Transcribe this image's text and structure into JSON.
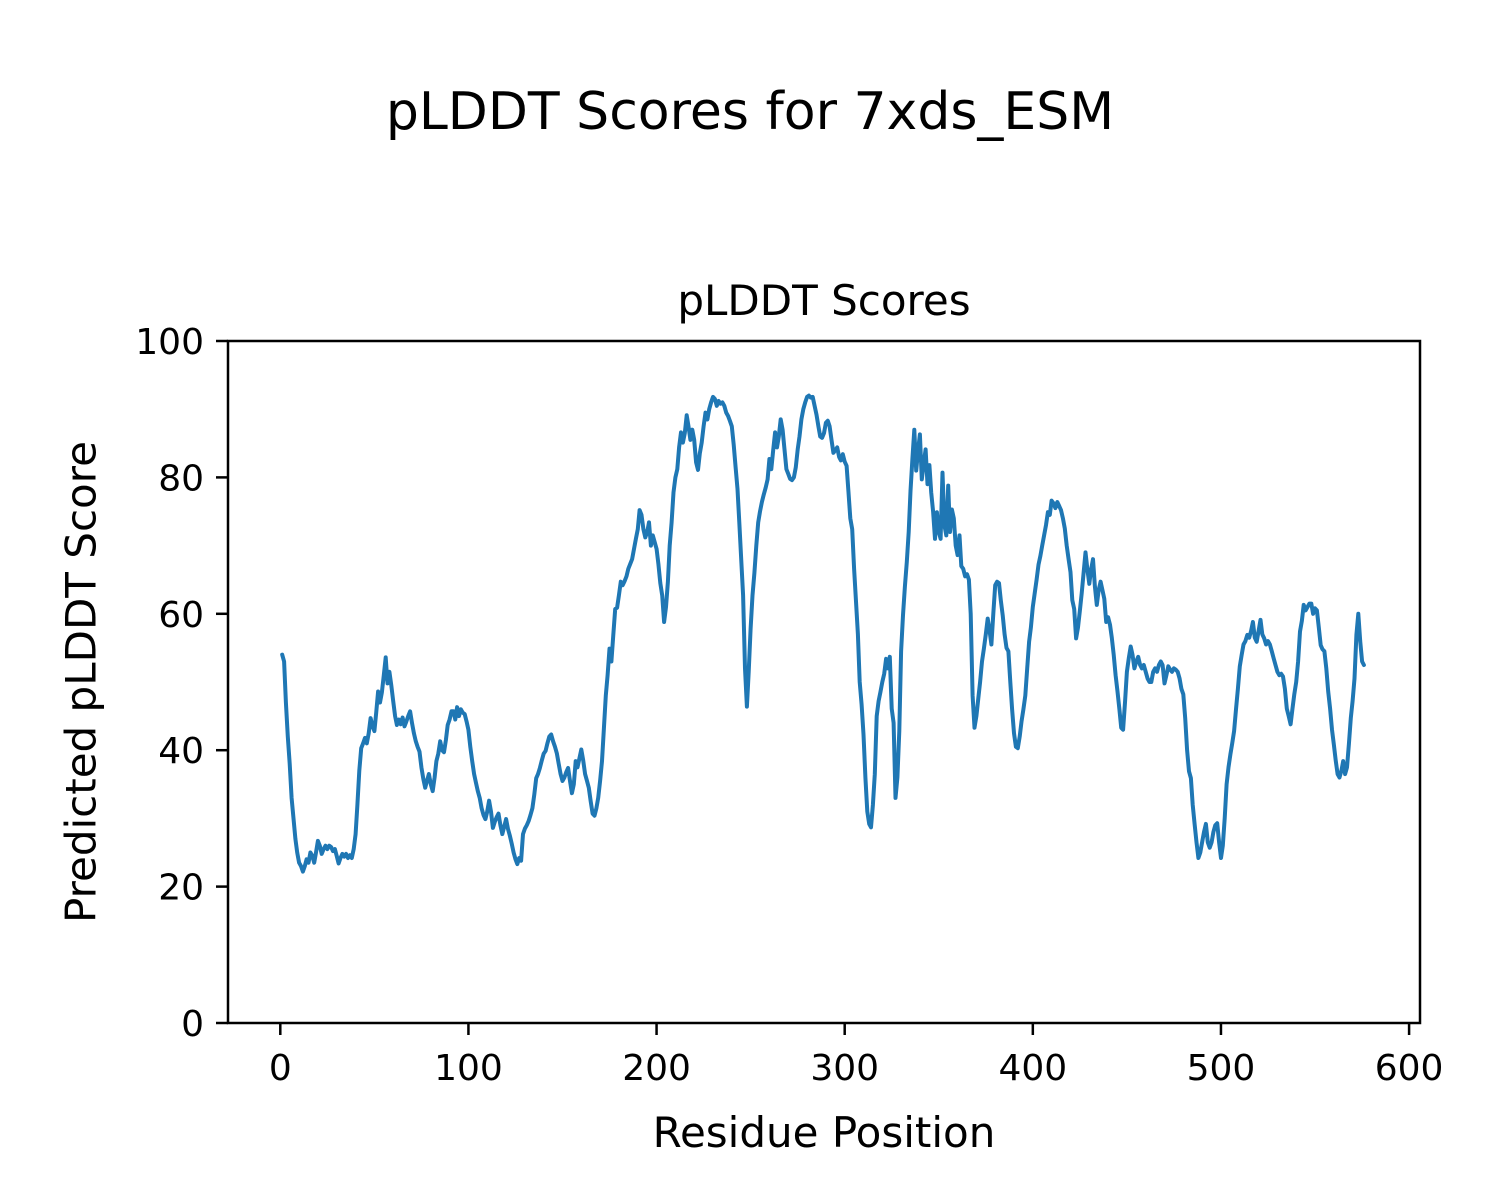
{
  "figure": {
    "suptitle": "pLDDT Scores for 7xds_ESM"
  },
  "chart_data": {
    "type": "line",
    "title": "pLDDT Scores",
    "xlabel": "Residue Position",
    "ylabel": "Predicted pLDDT Score",
    "xlim": [
      -27.8,
      605.8
    ],
    "ylim": [
      0,
      100
    ],
    "x_ticks": [
      0,
      100,
      200,
      300,
      400,
      500,
      600
    ],
    "y_ticks": [
      0,
      20,
      40,
      60,
      80,
      100
    ],
    "grid": false,
    "legend": "none",
    "line_color": "#1f77b4",
    "line_width": 4,
    "series": [
      {
        "name": "pLDDT",
        "x_start": 1,
        "x_step": 1,
        "values": [
          54,
          53,
          47,
          42,
          38,
          33,
          30,
          27,
          25,
          23.5,
          23,
          22.2,
          23,
          24,
          23.5,
          25,
          24.5,
          23.5,
          25,
          26.7,
          26,
          24.8,
          25.5,
          26,
          25.5,
          26,
          25.8,
          25.2,
          25.5,
          24.5,
          23.4,
          24.2,
          24.8,
          24.4,
          24.8,
          24.2,
          24.6,
          24.2,
          25.5,
          27.7,
          32,
          37,
          40.3,
          41,
          41.8,
          41,
          42.5,
          44.7,
          43.5,
          42.8,
          45.5,
          48.6,
          47,
          48.5,
          51,
          53.6,
          49.8,
          51.5,
          49.5,
          47.2,
          45,
          43.7,
          44.5,
          43.8,
          44.8,
          43.5,
          44.2,
          45,
          45.7,
          44,
          42.5,
          41.3,
          40.5,
          39.8,
          37.5,
          35.8,
          34.5,
          35.5,
          36.5,
          35,
          34,
          36,
          38.4,
          39.5,
          41.3,
          40,
          39.7,
          41.5,
          43.7,
          44.5,
          45.7,
          45.7,
          44.5,
          46.3,
          45,
          46,
          45.5,
          45.3,
          44.2,
          43,
          40.5,
          38.4,
          36.5,
          35.2,
          34,
          33,
          31.5,
          30.5,
          29.9,
          31,
          32.6,
          31,
          28.6,
          29.5,
          30.2,
          30.7,
          29,
          27.7,
          28.8,
          29.9,
          28.5,
          27.5,
          26.3,
          25,
          24,
          23.3,
          24.2,
          23.8,
          27.7,
          28.5,
          29,
          29.6,
          30.5,
          31.5,
          33.5,
          35.9,
          36.5,
          37.4,
          38.5,
          39.5,
          39.9,
          41,
          42,
          42.3,
          41.3,
          40.5,
          39.5,
          38,
          36.5,
          35.5,
          36,
          36.8,
          37.4,
          35.5,
          33.7,
          35,
          38.4,
          37.5,
          38.8,
          40.1,
          38.5,
          36.5,
          35.5,
          34.5,
          32.5,
          30.7,
          30.4,
          31.5,
          33,
          35.5,
          38.4,
          43.2,
          48,
          51,
          54.9,
          53,
          56.9,
          60.7,
          60.9,
          62.7,
          64.7,
          64.2,
          64.8,
          65.5,
          66.6,
          67.3,
          68,
          69.5,
          71,
          72.4,
          75.2,
          74.5,
          72.4,
          71.2,
          72,
          73.4,
          70,
          71.5,
          70.5,
          69.5,
          67.3,
          64.5,
          62.7,
          58.8,
          61,
          64.7,
          70,
          73.4,
          77.8,
          80,
          81.2,
          84.4,
          86.6,
          85.1,
          86.5,
          89.1,
          87.5,
          85.5,
          87,
          85.5,
          82.2,
          81.1,
          83.5,
          85.1,
          87.5,
          89.5,
          88.5,
          90,
          91,
          91.8,
          91.5,
          90.5,
          91.2,
          90.8,
          91,
          90.5,
          89.5,
          89,
          88.3,
          87.5,
          84.8,
          81.5,
          78.3,
          73.4,
          68,
          62.7,
          52,
          46.4,
          51.5,
          57.8,
          62.7,
          66,
          70,
          73.4,
          75,
          76.4,
          77.5,
          78.5,
          79.7,
          82.7,
          81.2,
          84,
          86.6,
          84.4,
          86,
          88.5,
          87,
          84.1,
          81.2,
          80.5,
          79.8,
          79.6,
          80,
          81.5,
          84.1,
          86,
          88.5,
          90,
          91,
          91.8,
          92,
          91.7,
          91.8,
          90.5,
          89.2,
          87.5,
          86,
          85.8,
          86.5,
          88,
          88.3,
          87.5,
          85.5,
          83.6,
          84,
          84.4,
          83,
          82.5,
          83.4,
          82.3,
          81.7,
          77.8,
          74,
          72.4,
          66.6,
          61.8,
          57,
          50,
          46.7,
          42.3,
          36,
          31,
          29.2,
          28.7,
          32,
          36.5,
          45,
          47.2,
          48.5,
          50,
          51.2,
          53.4,
          52,
          53.7,
          46.1,
          44,
          33,
          36,
          42.8,
          54.5,
          59.8,
          64,
          67.6,
          72,
          78,
          82.7,
          87,
          81,
          84,
          86.3,
          79.7,
          82,
          84.1,
          79,
          81.8,
          77.8,
          75,
          71,
          74.9,
          72,
          71,
          80.7,
          73,
          71.5,
          78.8,
          72,
          75.3,
          74,
          70,
          68.6,
          71.5,
          67,
          66.6,
          65.5,
          65.8,
          65,
          60,
          48,
          43.3,
          45,
          47.6,
          50,
          53,
          54.9,
          57,
          59.3,
          57.5,
          55.5,
          60,
          64.2,
          64.7,
          64.5,
          62,
          59.8,
          57,
          55,
          54.5,
          50,
          46,
          42.5,
          40.5,
          40.3,
          42,
          44.2,
          46,
          48,
          52,
          55.9,
          58,
          61,
          63,
          65,
          67.2,
          68.5,
          70,
          71.5,
          73,
          74.9,
          74.5,
          76.6,
          76.2,
          75.5,
          76.4,
          75.8,
          75.2,
          74,
          72.5,
          70,
          68,
          66.1,
          62,
          60.7,
          56.4,
          58,
          60.5,
          63,
          66,
          69,
          66.5,
          64.4,
          66.5,
          68,
          64,
          61.3,
          63.5,
          64.7,
          63.5,
          62.2,
          58.8,
          59.5,
          58.4,
          56.5,
          54,
          51,
          48.6,
          46,
          43.3,
          43,
          47,
          51.5,
          53.5,
          55.2,
          54,
          52,
          53,
          53.7,
          52.5,
          52,
          52.5,
          51.5,
          50.5,
          50,
          50,
          51.5,
          52,
          51.5,
          52.5,
          53,
          52.5,
          49.8,
          51,
          52.3,
          51.8,
          51.5,
          52,
          51.8,
          51.5,
          50.5,
          49,
          48.2,
          44.7,
          40,
          36.9,
          35.9,
          32,
          29.2,
          26.5,
          24.2,
          25,
          26.5,
          28,
          29.2,
          26.5,
          25.7,
          26.5,
          28,
          29,
          29.3,
          26.5,
          24.2,
          26,
          30,
          35,
          37.5,
          39.4,
          41,
          42.8,
          46,
          49,
          52.3,
          54,
          55.5,
          56,
          56.9,
          56.5,
          57.5,
          58.8,
          56.5,
          55.9,
          57.5,
          59.1,
          57,
          56.4,
          55.5,
          56,
          55.5,
          54.5,
          53.5,
          52.5,
          51.5,
          51,
          51.2,
          50.8,
          49,
          46.1,
          45,
          43.8,
          46,
          48.2,
          50,
          53,
          57.4,
          59,
          61.3,
          60.5,
          61,
          61.5,
          61.5,
          60,
          60.8,
          60.5,
          58,
          55.4,
          54.8,
          54.5,
          52,
          48.6,
          46.1,
          43,
          40.9,
          38.5,
          36.5,
          36,
          37,
          38.4,
          36.5,
          37.5,
          40.9,
          44.7,
          47.2,
          50.5,
          56.9,
          60,
          56,
          53,
          52.5
        ]
      }
    ]
  }
}
